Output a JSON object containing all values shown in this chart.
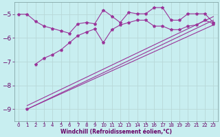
{
  "background_color": "#c8eef0",
  "grid_color": "#aacccc",
  "line_color": "#993399",
  "marker": "*",
  "marker_size": 3,
  "xlabel": "Windchill (Refroidissement éolien,°C)",
  "xlabel_color": "#660066",
  "tick_color": "#660066",
  "xlim": [
    -0.5,
    23.5
  ],
  "ylim": [
    -9.5,
    -4.5
  ],
  "yticks": [
    -9,
    -8,
    -7,
    -6,
    -5
  ],
  "xticks": [
    0,
    1,
    2,
    3,
    4,
    5,
    6,
    7,
    8,
    9,
    10,
    11,
    12,
    13,
    14,
    15,
    16,
    17,
    18,
    19,
    20,
    21,
    22,
    23
  ],
  "line1_x": [
    0,
    1,
    2,
    3,
    4,
    5,
    6,
    7,
    8,
    9,
    10,
    11,
    12,
    13,
    14,
    15,
    16,
    17,
    18,
    19,
    20,
    21,
    22,
    23
  ],
  "line1_y": [
    -5.0,
    -5.0,
    -5.3,
    -5.5,
    -5.6,
    -5.7,
    -5.8,
    -5.4,
    -5.35,
    -5.4,
    -4.82,
    -5.08,
    -5.35,
    -4.92,
    -4.98,
    -4.98,
    -4.72,
    -4.72,
    -5.25,
    -5.25,
    -4.98,
    -4.98,
    -4.98,
    -5.35
  ],
  "line2_x": [
    2,
    3,
    4,
    5,
    6,
    7,
    8,
    9,
    10,
    11,
    12,
    13,
    14,
    15,
    16,
    17,
    18,
    19,
    20,
    21,
    22,
    23
  ],
  "line2_y": [
    -7.1,
    -6.85,
    -6.7,
    -6.5,
    -6.2,
    -5.9,
    -5.75,
    -5.62,
    -6.2,
    -5.65,
    -5.45,
    -5.35,
    -5.25,
    -5.25,
    -5.5,
    -5.5,
    -5.65,
    -5.65,
    -5.5,
    -5.45,
    -5.25,
    -5.4
  ],
  "line3_x": [
    1,
    23
  ],
  "line3_y": [
    -9.0,
    -5.25
  ],
  "line4_x": [
    1,
    23
  ],
  "line4_y": [
    -9.0,
    -5.45
  ],
  "line5_x": [
    1,
    23
  ],
  "line5_y": [
    -8.85,
    -5.1
  ]
}
